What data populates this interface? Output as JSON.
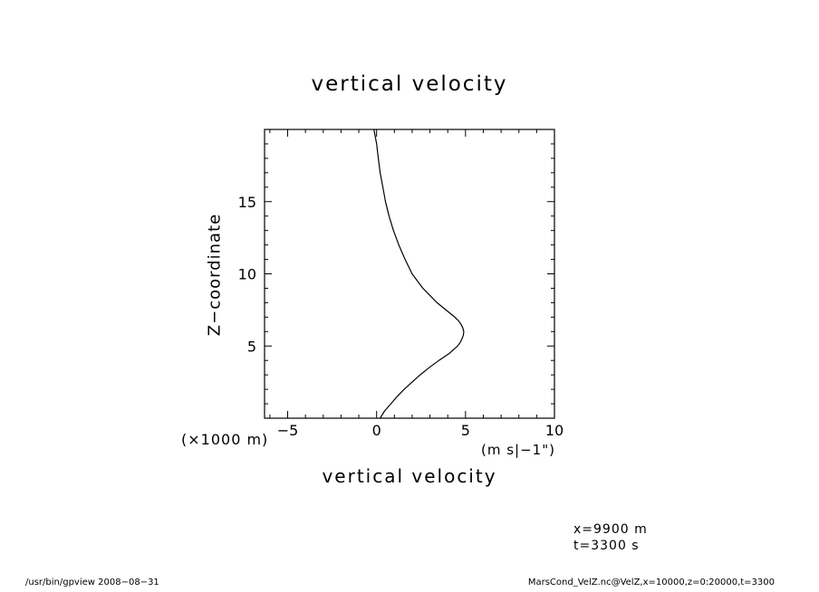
{
  "chart_data": {
    "type": "line",
    "title": "vertical velocity",
    "xlabel": "vertical velocity",
    "ylabel": "Z−coordinate",
    "x_unit_label": "(m s|−1\")",
    "y_unit_label": "(×1000 m)",
    "xlim": [
      -6.3,
      10
    ],
    "ylim": [
      0,
      20
    ],
    "x_major_ticks": [
      -5,
      0,
      5,
      10
    ],
    "x_tick_labels": [
      "−5",
      "0",
      "5",
      "10"
    ],
    "y_major_ticks": [
      5,
      10,
      15
    ],
    "y_tick_labels": [
      "5",
      "10",
      "15"
    ],
    "x_minor_step": 1,
    "y_minor_step": 1,
    "grid": false,
    "legend": false,
    "line_color": "#000000",
    "series": [
      {
        "name": "VelZ",
        "x": [
          -0.15,
          0.0,
          0.1,
          0.2,
          0.35,
          0.5,
          0.7,
          0.95,
          1.25,
          1.6,
          2.0,
          2.3,
          2.6,
          3.0,
          3.4,
          3.9,
          4.4,
          4.6,
          4.75,
          4.85,
          4.9,
          4.88,
          4.8,
          4.7,
          4.55,
          4.1,
          3.5,
          2.95,
          2.45,
          2.0,
          1.55,
          1.15,
          0.8,
          0.45,
          0.2
        ],
        "y": [
          20,
          19,
          18,
          17,
          16,
          15,
          14,
          13,
          12,
          11,
          10,
          9.5,
          9,
          8.5,
          8,
          7.5,
          7,
          6.75,
          6.5,
          6.25,
          6,
          5.75,
          5.5,
          5.25,
          5,
          4.5,
          4,
          3.5,
          3,
          2.5,
          2,
          1.5,
          1,
          0.5,
          0
        ]
      }
    ]
  },
  "annotations": {
    "line1": "x=9900 m",
    "line2": "t=3300 s"
  },
  "footer": {
    "left": "/usr/bin/gpview  2008−08−31",
    "right": "MarsCond_VelZ.nc@VelZ,x=10000,z=0:20000,t=3300"
  }
}
